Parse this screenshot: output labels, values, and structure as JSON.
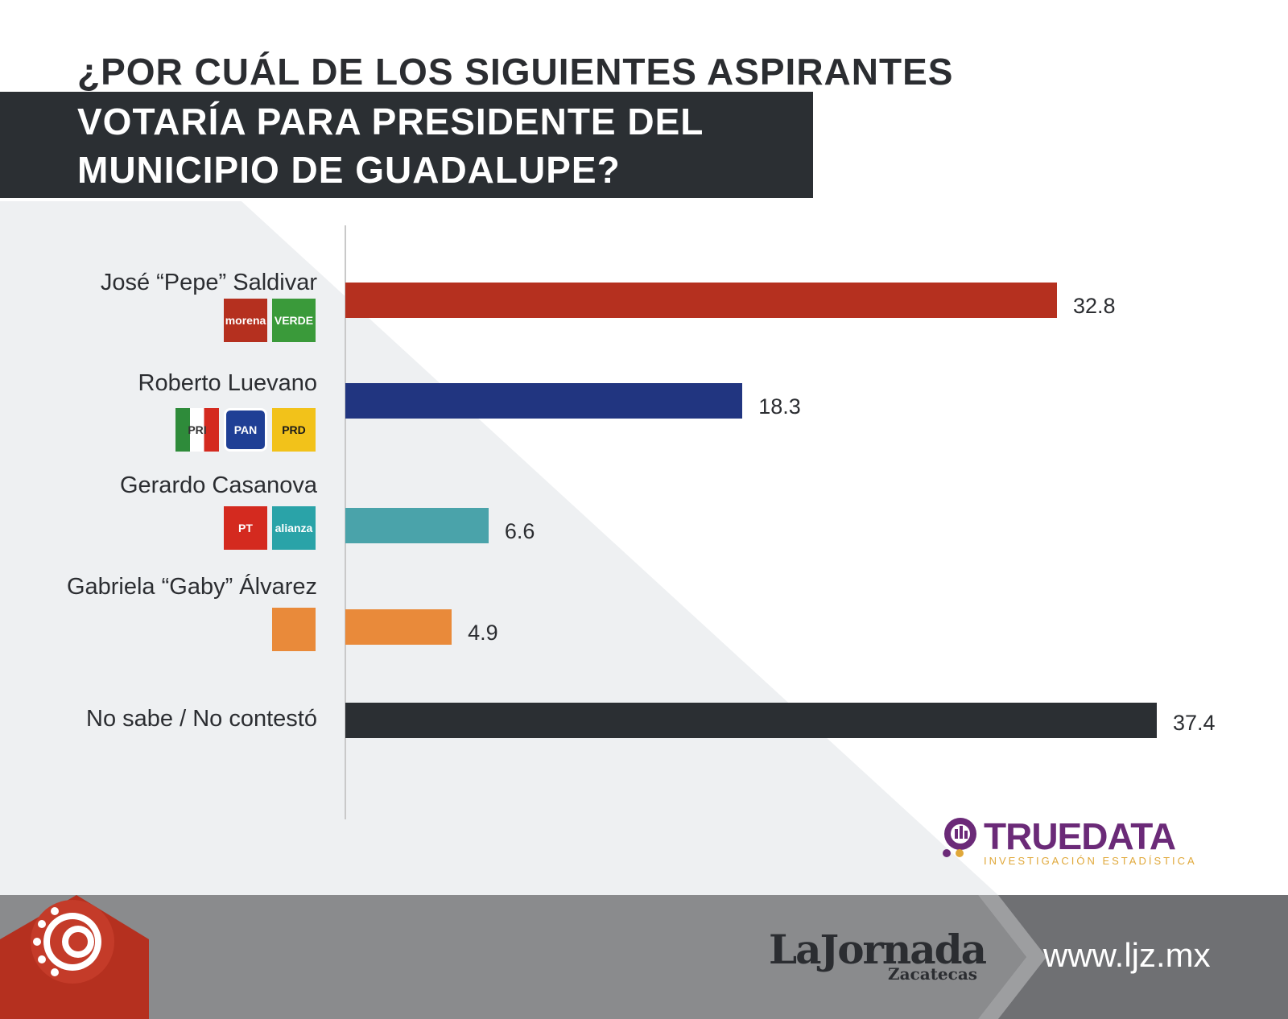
{
  "title": {
    "line1": "¿POR CUÁL DE LOS SIGUIENTES ASPIRANTES",
    "line2": "VOTARÍA PARA PRESIDENTE DEL",
    "line3": "MUNICIPIO DE GUADALUPE?"
  },
  "colors": {
    "title_box": "#2b2f33",
    "footer_gray": "#8a8b8d",
    "footer_dark": "#7a7b7e",
    "brand_red": "#b5301f",
    "truedata_purple": "#6b2a78",
    "truedata_gold": "#e0a83a"
  },
  "chart_data": {
    "type": "bar",
    "orientation": "horizontal",
    "categories": [
      "José “Pepe” Saldivar",
      "Roberto Luevano",
      "Gerardo Casanova",
      "Gabriela “Gaby” Álvarez",
      "No sabe / No contestó"
    ],
    "values": [
      32.8,
      18.3,
      6.6,
      4.9,
      37.4
    ],
    "value_labels": [
      "32.8",
      "18.3",
      "6.6",
      "4.9",
      "37.4"
    ],
    "colors": [
      "#b5301f",
      "#213580",
      "#4aa3aa",
      "#e98a3a",
      "#2b2f33"
    ],
    "xlim": [
      0,
      40
    ],
    "grid": false,
    "legend": "none"
  },
  "party_logos": [
    [
      {
        "name": "morena-logo",
        "text": "morena",
        "color": "#b5301f"
      },
      {
        "name": "verde-logo",
        "text": "VERDE",
        "color": "#3a9a3a"
      }
    ],
    [
      {
        "name": "pri-logo",
        "text": "PRI",
        "color": "#2e8b3a"
      },
      {
        "name": "pan-logo",
        "text": "PAN",
        "color": "#1f3f95"
      },
      {
        "name": "prd-logo",
        "text": "PRD",
        "color": "#f2c21a"
      }
    ],
    [
      {
        "name": "pt-logo",
        "text": "PT",
        "color": "#d42a1f"
      },
      {
        "name": "nueva-alianza-logo",
        "text": "alianza",
        "color": "#2aa3a8"
      }
    ],
    [
      {
        "name": "movimiento-ciudadano-logo",
        "text": "",
        "color": "#e98a3a"
      }
    ],
    []
  ],
  "truedata": {
    "brand": "TRUEDATA",
    "subtitle": "INVESTIGACIÓN ESTADÍSTICA"
  },
  "footer": {
    "brand": "LaJornada",
    "brand_sub": "Zacatecas",
    "url": "www.ljz.mx"
  }
}
